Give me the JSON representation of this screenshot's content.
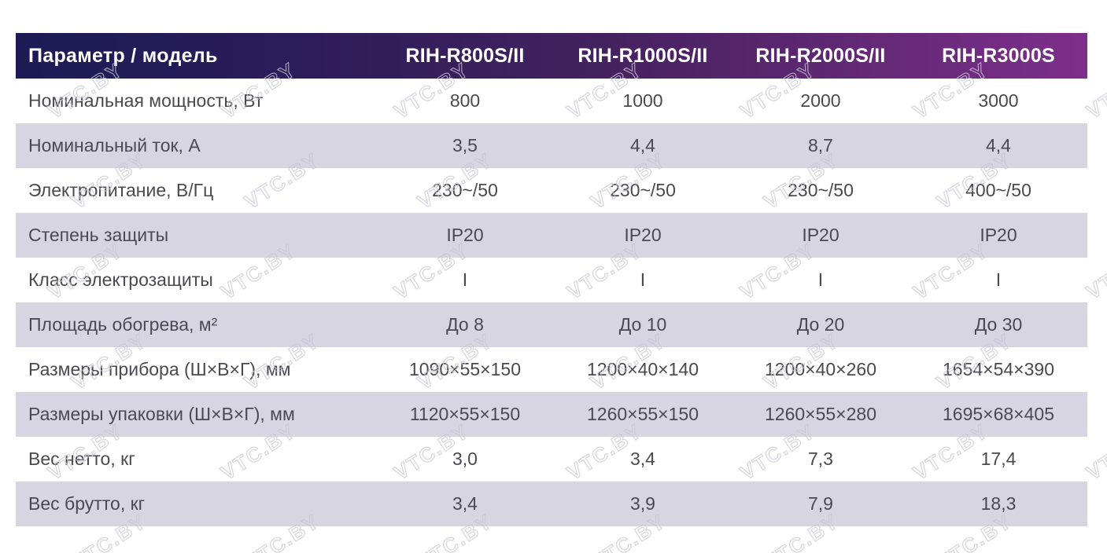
{
  "colors": {
    "header_gradient_left": "#1c1b55",
    "header_gradient_mid": "#45215f",
    "header_gradient_right": "#7d2f8a",
    "stripe_row": "#d8d5e2",
    "body_text": "#4a4952",
    "header_text": "#ffffff",
    "watermark": "#cdcad8"
  },
  "watermark": {
    "text": "VTC.BY"
  },
  "table": {
    "columns": [
      "Параметр / модель",
      "RIH-R800S/II",
      "RIH-R1000S/II",
      "RIH-R2000S/II",
      "RIH-R3000S"
    ],
    "rows": [
      {
        "param": "Номинальная мощность, Вт",
        "values": [
          "800",
          "1000",
          "2000",
          "3000"
        ]
      },
      {
        "param": "Номинальный ток, А",
        "values": [
          "3,5",
          "4,4",
          "8,7",
          "4,4"
        ]
      },
      {
        "param": "Электропитание, В/Гц",
        "values": [
          "230~/50",
          "230~/50",
          "230~/50",
          "400~/50"
        ]
      },
      {
        "param": "Степень защиты",
        "values": [
          "IP20",
          "IP20",
          "IP20",
          "IP20"
        ]
      },
      {
        "param": "Класс электрозащиты",
        "values": [
          "I",
          "I",
          "I",
          "I"
        ]
      },
      {
        "param": "Площадь обогрева, м²",
        "values": [
          "До 8",
          "До 10",
          "До 20",
          "До 30"
        ]
      },
      {
        "param": "Размеры прибора (Ш×В×Г), мм",
        "values": [
          "1090×55×150",
          "1200×40×140",
          "1200×40×260",
          "1654×54×390"
        ]
      },
      {
        "param": "Размеры упаковки (Ш×В×Г), мм",
        "values": [
          "1120×55×150",
          "1260×55×150",
          "1260×55×280",
          "1695×68×405"
        ]
      },
      {
        "param": "Вес нетто, кг",
        "values": [
          "3,0",
          "3,4",
          "7,3",
          "17,4"
        ]
      },
      {
        "param": "Вес брутто, кг",
        "values": [
          "3,4",
          "3,9",
          "7,9",
          "18,3"
        ]
      }
    ]
  }
}
